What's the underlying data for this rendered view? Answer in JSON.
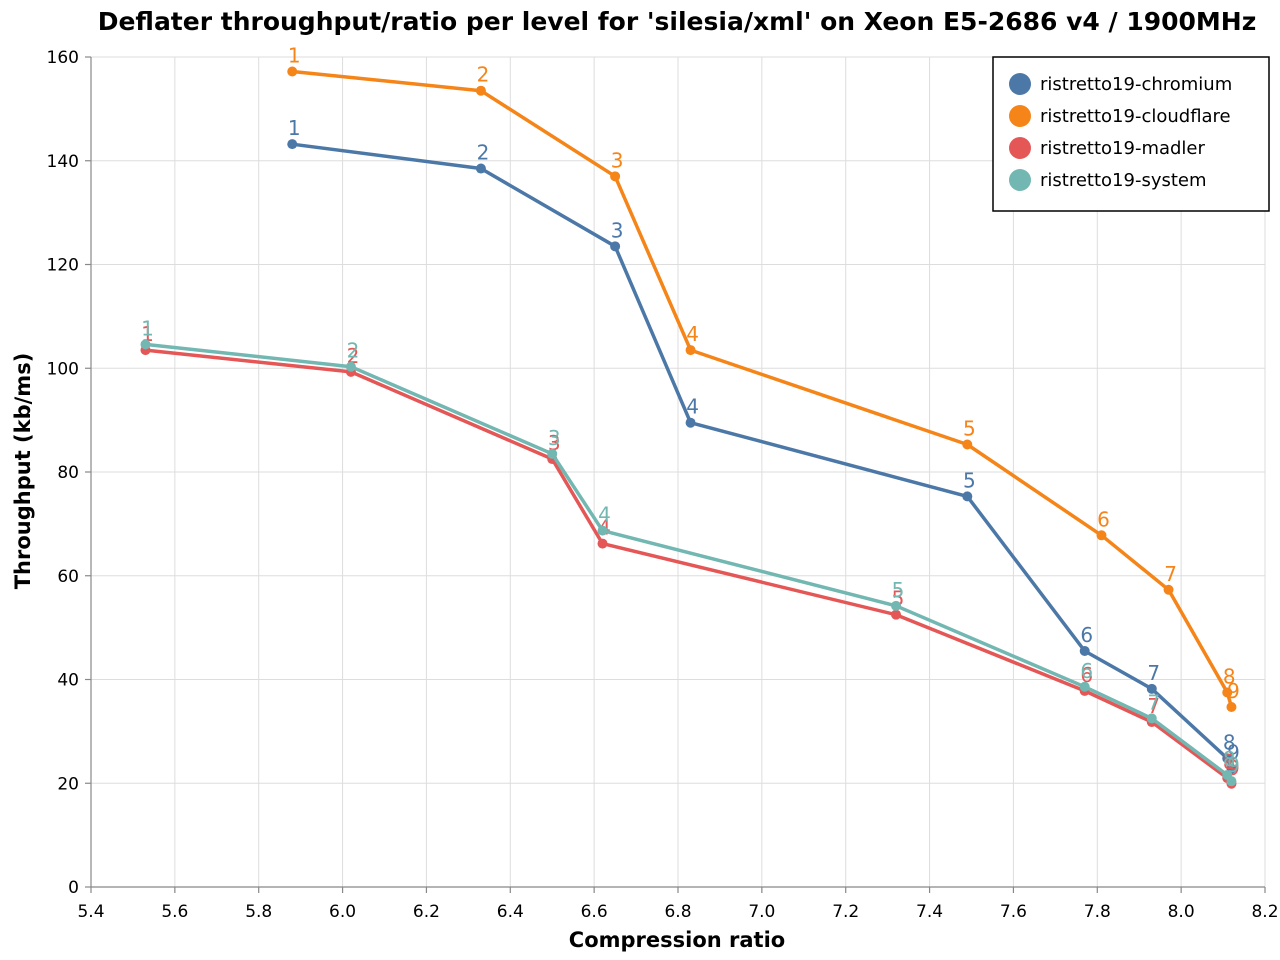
{
  "chart_data": {
    "type": "line",
    "title": "Deflater throughput/ratio per level for 'silesia/xml' on Xeon E5-2686 v4 / 1900MHz",
    "xlabel": "Compression ratio",
    "ylabel": "Throughput (kb/ms)",
    "xlim": [
      5.4,
      8.2
    ],
    "ylim": [
      0,
      160
    ],
    "xticks": [
      "5.4",
      "5.6",
      "5.8",
      "6.0",
      "6.2",
      "6.4",
      "6.6",
      "6.8",
      "7.0",
      "7.2",
      "7.4",
      "7.6",
      "7.8",
      "8.0",
      "8.2"
    ],
    "yticks": [
      "0",
      "20",
      "40",
      "60",
      "80",
      "100",
      "120",
      "140",
      "160"
    ],
    "grid": true,
    "legend_position": "top-right",
    "series": [
      {
        "name": "ristretto19-chromium",
        "color": "#4c78a8",
        "points": [
          {
            "label": "1",
            "x": 5.88,
            "y": 143.2
          },
          {
            "label": "2",
            "x": 6.33,
            "y": 138.5
          },
          {
            "label": "3",
            "x": 6.65,
            "y": 123.5
          },
          {
            "label": "4",
            "x": 6.83,
            "y": 89.5
          },
          {
            "label": "5",
            "x": 7.49,
            "y": 75.3
          },
          {
            "label": "6",
            "x": 7.77,
            "y": 45.5
          },
          {
            "label": "7",
            "x": 7.93,
            "y": 38.2
          },
          {
            "label": "8",
            "x": 8.11,
            "y": 24.8
          },
          {
            "label": "9",
            "x": 8.12,
            "y": 22.8
          }
        ]
      },
      {
        "name": "ristretto19-cloudflare",
        "color": "#f58518",
        "points": [
          {
            "label": "1",
            "x": 5.88,
            "y": 157.2
          },
          {
            "label": "2",
            "x": 6.33,
            "y": 153.5
          },
          {
            "label": "3",
            "x": 6.65,
            "y": 137.0
          },
          {
            "label": "4",
            "x": 6.83,
            "y": 103.5
          },
          {
            "label": "5",
            "x": 7.49,
            "y": 85.3
          },
          {
            "label": "6",
            "x": 7.81,
            "y": 67.8
          },
          {
            "label": "7",
            "x": 7.97,
            "y": 57.3
          },
          {
            "label": "8",
            "x": 8.11,
            "y": 37.5
          },
          {
            "label": "9",
            "x": 8.12,
            "y": 34.7
          }
        ]
      },
      {
        "name": "ristretto19-madler",
        "color": "#e45756",
        "points": [
          {
            "label": "1",
            "x": 5.53,
            "y": 103.5
          },
          {
            "label": "2",
            "x": 6.02,
            "y": 99.3
          },
          {
            "label": "3",
            "x": 6.5,
            "y": 82.5
          },
          {
            "label": "4",
            "x": 6.62,
            "y": 66.2
          },
          {
            "label": "5",
            "x": 7.32,
            "y": 52.5
          },
          {
            "label": "6",
            "x": 7.77,
            "y": 37.8
          },
          {
            "label": "7",
            "x": 7.93,
            "y": 31.8
          },
          {
            "label": "8",
            "x": 8.11,
            "y": 21.0
          },
          {
            "label": "9",
            "x": 8.12,
            "y": 19.9
          }
        ]
      },
      {
        "name": "ristretto19-system",
        "color": "#72b7b2",
        "points": [
          {
            "label": "1",
            "x": 5.53,
            "y": 104.6
          },
          {
            "label": "2",
            "x": 6.02,
            "y": 100.3
          },
          {
            "label": "3",
            "x": 6.5,
            "y": 83.5
          },
          {
            "label": "4",
            "x": 6.62,
            "y": 68.7
          },
          {
            "label": "5",
            "x": 7.32,
            "y": 54.2
          },
          {
            "label": "6",
            "x": 7.77,
            "y": 38.6
          },
          {
            "label": "7",
            "x": 7.93,
            "y": 32.5
          },
          {
            "label": "8",
            "x": 8.11,
            "y": 21.6
          },
          {
            "label": "9",
            "x": 8.12,
            "y": 20.4
          }
        ]
      }
    ]
  }
}
